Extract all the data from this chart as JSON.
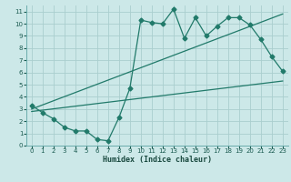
{
  "xlabel": "Humidex (Indice chaleur)",
  "xlim": [
    -0.5,
    23.5
  ],
  "ylim": [
    0,
    11.5
  ],
  "xticks": [
    0,
    1,
    2,
    3,
    4,
    5,
    6,
    7,
    8,
    9,
    10,
    11,
    12,
    13,
    14,
    15,
    16,
    17,
    18,
    19,
    20,
    21,
    22,
    23
  ],
  "yticks": [
    0,
    1,
    2,
    3,
    4,
    5,
    6,
    7,
    8,
    9,
    10,
    11
  ],
  "bg_color": "#cce8e8",
  "grid_color": "#aacece",
  "line_color": "#217a6a",
  "series1_x": [
    0,
    1,
    2,
    3,
    4,
    5,
    6,
    7,
    8,
    9,
    10,
    11,
    12,
    13,
    14,
    15,
    16,
    17,
    18,
    19,
    20,
    21,
    22,
    23
  ],
  "series1_y": [
    3.3,
    2.7,
    2.2,
    1.5,
    1.2,
    1.2,
    0.5,
    0.4,
    2.3,
    4.7,
    10.3,
    10.1,
    10.0,
    11.2,
    8.8,
    10.5,
    9.0,
    9.8,
    10.5,
    10.5,
    9.9,
    8.7,
    7.3,
    6.1
  ],
  "series2_x": [
    0,
    23
  ],
  "series2_y": [
    2.8,
    5.3
  ],
  "series3_x": [
    0,
    23
  ],
  "series3_y": [
    3.0,
    10.8
  ],
  "marker": "D",
  "markersize": 2.5,
  "linewidth": 0.9
}
